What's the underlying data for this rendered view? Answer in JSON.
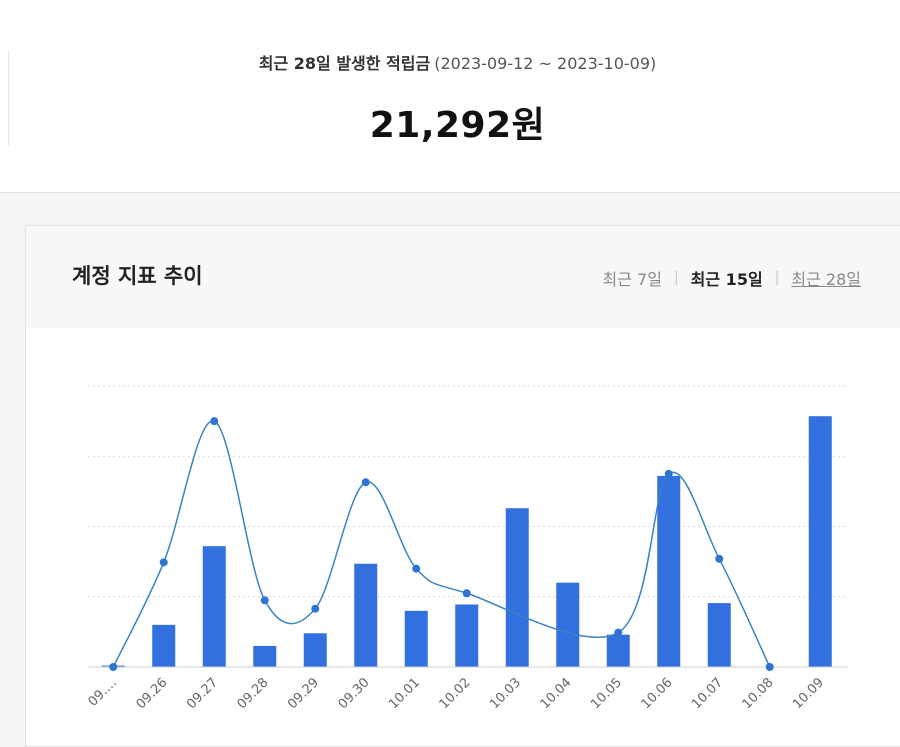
{
  "summary": {
    "label": "최근 28일 발생한 적립금",
    "range": "(2023-09-12 ~ 2023-10-09)",
    "amount": "21,292원"
  },
  "card": {
    "title": "계정 지표 추이",
    "tabs": [
      {
        "label": "최근 7일",
        "active": false
      },
      {
        "label": "최근 15일",
        "active": true
      },
      {
        "label": "최근 28일",
        "active": false
      }
    ]
  },
  "colors": {
    "bar": "#3170de",
    "line": "#3a84c4",
    "point": "#2f74d0",
    "grid": "#d9d9d9",
    "axis": "#cfcfcf",
    "tick": "#666666"
  },
  "chart_data": {
    "type": "bar",
    "categories": [
      "09.…",
      "09.26",
      "09.27",
      "09.28",
      "09.29",
      "09.30",
      "10.01",
      "10.02",
      "10.03",
      "10.04",
      "10.05",
      "10.06",
      "10.07",
      "10.08",
      "10.09"
    ],
    "ylim": [
      0,
      4
    ],
    "grid": true,
    "series": [
      {
        "type": "bar",
        "values": [
          0.02,
          0.6,
          1.72,
          0.3,
          0.48,
          1.47,
          0.8,
          0.89,
          2.26,
          1.2,
          0.46,
          2.72,
          0.91,
          0,
          3.57
        ]
      },
      {
        "type": "line",
        "values": [
          0,
          1.49,
          3.5,
          0.95,
          0.83,
          2.63,
          1.4,
          1.05,
          null,
          null,
          0.49,
          2.75,
          1.54,
          0,
          null
        ]
      }
    ]
  }
}
